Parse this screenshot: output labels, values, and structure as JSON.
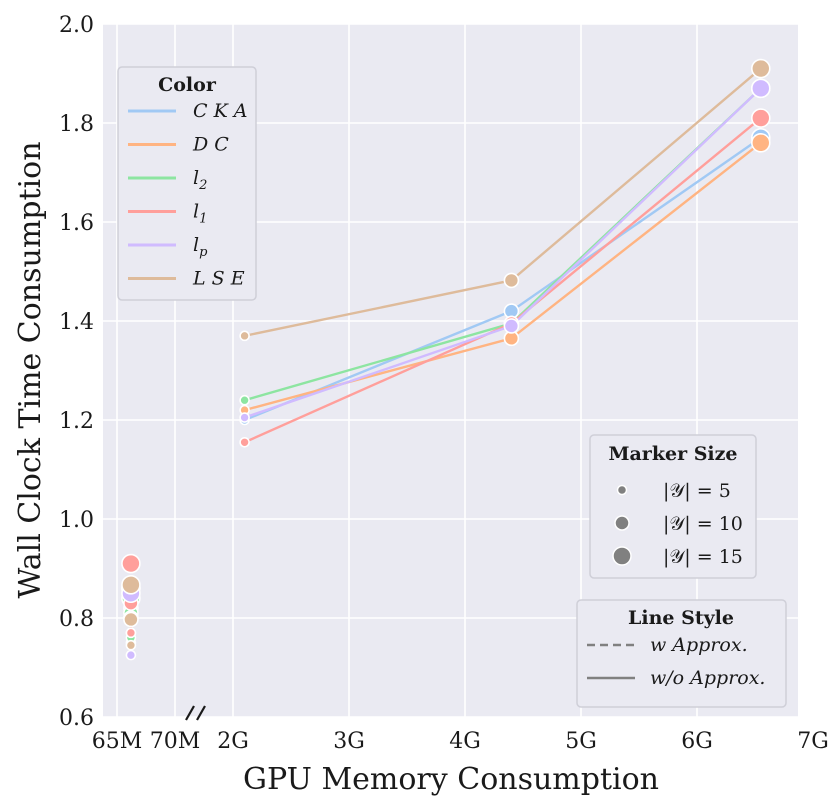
{
  "chart_data": {
    "type": "line",
    "xlabel": "GPU Memory Consumption",
    "ylabel": "Wall Clock Time Consumption",
    "x_tick_labels_left": [
      "65M",
      "70M"
    ],
    "x_tick_labels_right": [
      "2G",
      "3G",
      "4G",
      "5G",
      "6G",
      "7G"
    ],
    "ylim": [
      0.6,
      2.0
    ],
    "y_ticks": [
      0.6,
      0.8,
      1.0,
      1.2,
      1.4,
      1.6,
      1.8,
      2.0
    ],
    "x_break": true,
    "series": [
      {
        "name": "CKA",
        "color": "#a1c9f4",
        "approx_points": [
          {
            "x_mb": 66.2,
            "y": 0.77,
            "size": 5
          },
          {
            "x_mb": 66.2,
            "y": 0.82,
            "size": 10
          },
          {
            "x_mb": 66.2,
            "y": 0.86,
            "size": 15
          }
        ],
        "full_points": [
          {
            "x_gb": 2.1,
            "y": 1.2,
            "size": 5
          },
          {
            "x_gb": 4.4,
            "y": 1.42,
            "size": 10
          },
          {
            "x_gb": 6.55,
            "y": 1.77,
            "size": 15
          }
        ]
      },
      {
        "name": "DC",
        "color": "#ffb482",
        "approx_points": [
          {
            "x_mb": 66.2,
            "y": 0.75,
            "size": 5
          },
          {
            "x_mb": 66.2,
            "y": 0.8,
            "size": 10
          },
          {
            "x_mb": 66.2,
            "y": 0.86,
            "size": 15
          }
        ],
        "full_points": [
          {
            "x_gb": 2.1,
            "y": 1.22,
            "size": 5
          },
          {
            "x_gb": 4.4,
            "y": 1.365,
            "size": 10
          },
          {
            "x_gb": 6.55,
            "y": 1.76,
            "size": 15
          }
        ]
      },
      {
        "name": "l_2",
        "color": "#8de5a1",
        "approx_points": [
          {
            "x_mb": 66.2,
            "y": 0.76,
            "size": 5
          },
          {
            "x_mb": 66.2,
            "y": 0.81,
            "size": 10
          },
          {
            "x_mb": 66.2,
            "y": 0.84,
            "size": 15
          }
        ],
        "full_points": [
          {
            "x_gb": 2.1,
            "y": 1.24,
            "size": 5
          },
          {
            "x_gb": 4.4,
            "y": 1.395,
            "size": 10
          },
          {
            "x_gb": 6.55,
            "y": 1.87,
            "size": 15
          }
        ]
      },
      {
        "name": "l_1",
        "color": "#ff9f9b",
        "approx_points": [
          {
            "x_mb": 66.2,
            "y": 0.77,
            "size": 5
          },
          {
            "x_mb": 66.2,
            "y": 0.83,
            "size": 10
          },
          {
            "x_mb": 66.2,
            "y": 0.91,
            "size": 15
          }
        ],
        "full_points": [
          {
            "x_gb": 2.1,
            "y": 1.155,
            "size": 5
          },
          {
            "x_gb": 4.4,
            "y": 1.395,
            "size": 10
          },
          {
            "x_gb": 6.55,
            "y": 1.81,
            "size": 15
          }
        ]
      },
      {
        "name": "l_p",
        "color": "#d0bbff",
        "approx_points": [
          {
            "x_mb": 66.2,
            "y": 0.725,
            "size": 5
          },
          {
            "x_mb": 66.2,
            "y": 0.8,
            "size": 10
          },
          {
            "x_mb": 66.2,
            "y": 0.85,
            "size": 15
          }
        ],
        "full_points": [
          {
            "x_gb": 2.1,
            "y": 1.205,
            "size": 5
          },
          {
            "x_gb": 4.4,
            "y": 1.39,
            "size": 10
          },
          {
            "x_gb": 6.55,
            "y": 1.87,
            "size": 15
          }
        ]
      },
      {
        "name": "LSE",
        "color": "#debb9b",
        "approx_points": [
          {
            "x_mb": 66.2,
            "y": 0.745,
            "size": 5
          },
          {
            "x_mb": 66.2,
            "y": 0.797,
            "size": 10
          },
          {
            "x_mb": 66.2,
            "y": 0.867,
            "size": 15
          }
        ],
        "full_points": [
          {
            "x_gb": 2.1,
            "y": 1.37,
            "size": 5
          },
          {
            "x_gb": 4.4,
            "y": 1.482,
            "size": 10
          },
          {
            "x_gb": 6.55,
            "y": 1.91,
            "size": 15
          }
        ]
      }
    ],
    "legends": {
      "color": {
        "title": "Color",
        "entries": [
          "CKA",
          "DC",
          "l2",
          "l1",
          "lp",
          "LSE"
        ]
      },
      "marker_size": {
        "title": "Marker Size",
        "entries": [
          "|𝒴| = 5",
          "|𝒴| = 10",
          "|𝒴| = 15"
        ],
        "sizes": [
          5,
          10,
          15
        ]
      },
      "line_style": {
        "title": "Line Style",
        "entries": [
          "w Approx.",
          "w/o Approx."
        ],
        "styles": [
          "dashed",
          "solid"
        ]
      }
    }
  }
}
